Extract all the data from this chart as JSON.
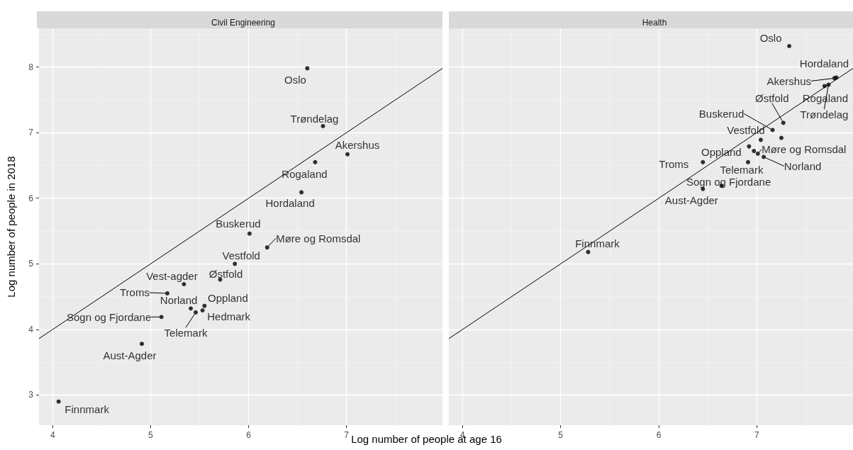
{
  "chart_data": [
    {
      "type": "scatter",
      "title": "Civil Engineering",
      "xlabel": "Log number of people at age 16",
      "ylabel": "Log number of people in 2018",
      "xlim": [
        3.86,
        7.98
      ],
      "ylim": [
        2.54,
        8.59
      ],
      "xticks": [
        4,
        5,
        6,
        7
      ],
      "yticks": [
        3,
        4,
        5,
        6,
        7,
        8
      ],
      "grid": true,
      "series": [
        {
          "marker": "circle",
          "color": "#000000",
          "x": [
            6.6,
            6.76,
            7.01,
            6.68,
            6.54,
            6.01,
            6.19,
            5.86,
            5.71,
            5.34,
            5.17,
            5.41,
            5.55,
            5.46,
            5.53,
            5.11,
            4.91,
            4.06
          ],
          "values": [
            7.98,
            7.1,
            6.67,
            6.55,
            6.09,
            5.46,
            5.25,
            5.0,
            4.76,
            4.69,
            4.55,
            4.32,
            4.36,
            4.26,
            4.29,
            4.19,
            3.78,
            2.9
          ],
          "value_labels": [
            "Oslo",
            "Trøndelag",
            "Akershus",
            "Rogaland",
            "Hordaland",
            "Buskerud",
            "Møre og Romsdal",
            "Vestfold",
            "Østfold",
            "Vest-agder",
            "Troms",
            "Norland",
            "Oppland",
            "Telemark",
            "Hedmark",
            "Sogn og Fjordane",
            "Aust-Agder",
            "Finnmark"
          ]
        },
        {
          "type": "line",
          "marker": "none",
          "color": "#000000",
          "x": [
            3.86,
            7.98
          ],
          "values": [
            3.86,
            7.98
          ]
        }
      ]
    },
    {
      "type": "scatter",
      "title": "Health",
      "xlim": [
        3.86,
        7.98
      ],
      "ylim": [
        2.54,
        8.59
      ],
      "xticks": [
        4,
        5,
        6,
        7
      ],
      "yticks": [
        3,
        4,
        5,
        6,
        7,
        8
      ],
      "grid": true,
      "tick_labels": "x",
      "series": [
        {
          "marker": "circle",
          "color": "#000000",
          "x": [
            7.33,
            7.81,
            7.79,
            7.69,
            7.73,
            7.27,
            7.16,
            7.04,
            7.25,
            6.92,
            6.97,
            7.01,
            7.07,
            6.45,
            6.91,
            6.64,
            6.45,
            5.28
          ],
          "values": [
            8.32,
            7.84,
            7.83,
            7.71,
            7.73,
            7.15,
            7.04,
            6.89,
            6.92,
            6.79,
            6.72,
            6.68,
            6.63,
            6.55,
            6.55,
            6.19,
            6.14,
            5.18
          ],
          "value_labels": [
            "Oslo",
            "Hordaland",
            "Akershus",
            "Rogaland",
            "Trøndelag",
            "Østfold",
            "Buskerud",
            "Vestfold",
            null,
            "Oppland",
            null,
            "Møre og Romsdal",
            "Norland",
            "Troms",
            "Telemark",
            "Sogn og Fjordane",
            "Aust-Agder",
            "Finnmark"
          ]
        },
        {
          "type": "line",
          "marker": "none",
          "color": "#000000",
          "x": [
            3.86,
            7.98
          ],
          "values": [
            3.86,
            7.98
          ]
        }
      ]
    }
  ]
}
